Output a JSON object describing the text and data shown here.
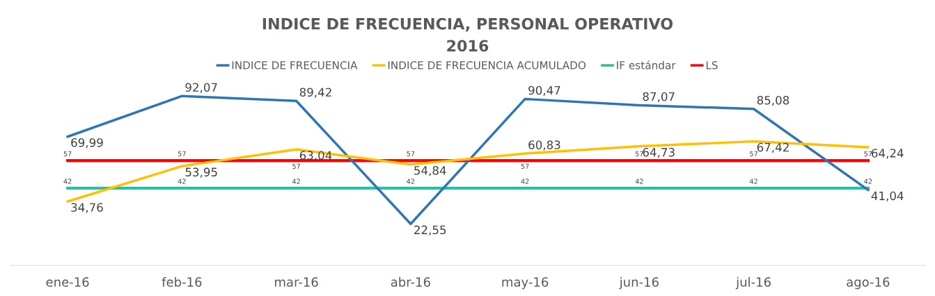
{
  "chart_data": {
    "type": "line",
    "title": "INDICE DE FRECUENCIA, PERSONAL OPERATIVO\n2016",
    "categories": [
      "ene-16",
      "feb-16",
      "mar-16",
      "abr-16",
      "may-16",
      "jun-16",
      "jul-16",
      "ago-16"
    ],
    "series": [
      {
        "name": "INDICE DE FRECUENCIA",
        "color": "#2e75b6",
        "values": [
          69.99,
          92.07,
          89.42,
          22.55,
          90.47,
          87.07,
          85.08,
          41.04
        ],
        "value_labels": [
          "69,99",
          "92,07",
          "89,42",
          "22,55",
          "90,47",
          "87,07",
          "85,08",
          "41,04"
        ]
      },
      {
        "name": "INDICE DE FRECUENCIA ACUMULADO",
        "color": "#ffc000",
        "values": [
          34.76,
          53.95,
          63.04,
          54.84,
          60.83,
          64.73,
          67.42,
          64.24
        ],
        "value_labels": [
          "34,76",
          "53,95",
          "63,04",
          "54,84",
          "60,83",
          "64,73",
          "67,42",
          "64,24"
        ]
      },
      {
        "name": "IF estándar",
        "color": "#1fbf9f",
        "values": [
          42,
          42,
          42,
          42,
          42,
          42,
          42,
          42
        ],
        "value_labels": [
          "42",
          "42",
          "42",
          "42",
          "42",
          "42",
          "42",
          "42"
        ]
      },
      {
        "name": "LS",
        "color": "#ff0000",
        "values": [
          57,
          57,
          57,
          57,
          57,
          57,
          57,
          57
        ],
        "value_labels": [
          "57",
          "57",
          "57",
          "57",
          "57",
          "57",
          "57",
          "57"
        ]
      }
    ],
    "tick_labels": "x",
    "legend": "top",
    "grid": false,
    "marker": "none",
    "line_style": "solid"
  }
}
